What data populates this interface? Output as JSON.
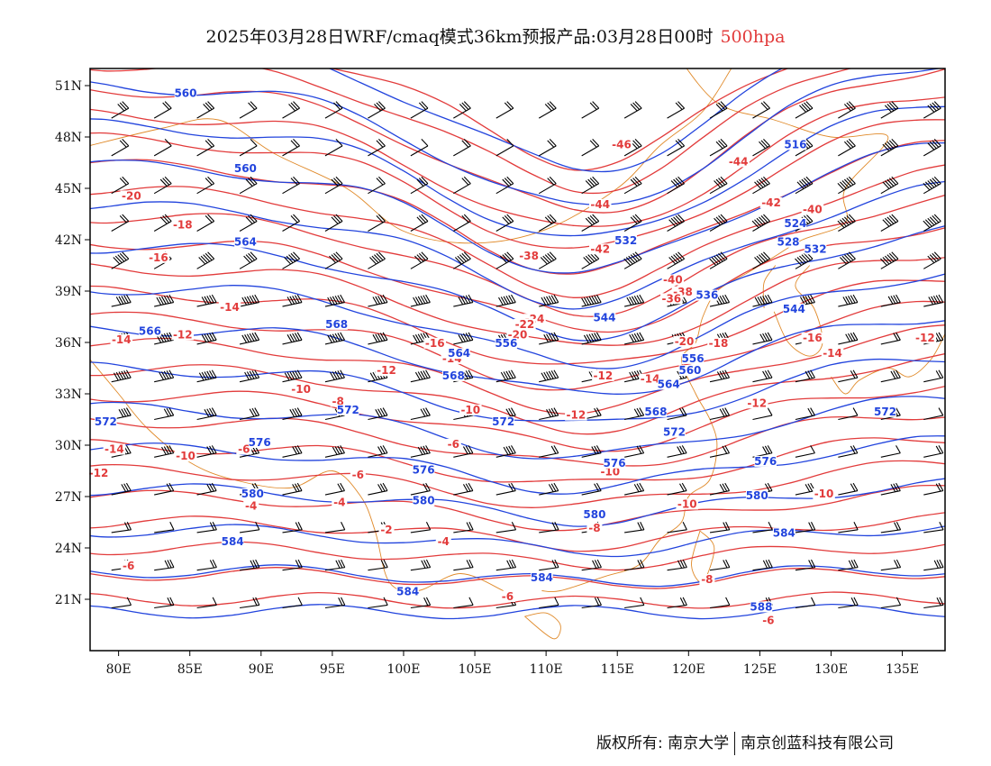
{
  "header": {
    "title": "2025年03月28日WRF/cmaq模式36km预报产品:03月28日00时",
    "level": "500hpa"
  },
  "map": {
    "lon_range": [
      78,
      138
    ],
    "lat_range": [
      18,
      52
    ],
    "lat_ticks": [
      "51N",
      "48N",
      "45N",
      "42N",
      "39N",
      "36N",
      "33N",
      "30N",
      "27N",
      "24N",
      "21N"
    ],
    "lon_ticks": [
      "80E",
      "85E",
      "90E",
      "95E",
      "100E",
      "105E",
      "110E",
      "115E",
      "120E",
      "125E",
      "130E",
      "135E"
    ],
    "colors": {
      "temperature": "#e23b3b",
      "height": "#2244dd",
      "wind": "#000000",
      "boundary": "#e08a2a"
    },
    "temp_labels": [
      {
        "t": "-46",
        "lon": 115.3,
        "lat": 47.4
      },
      {
        "t": "-44",
        "lon": 123.5,
        "lat": 46.4
      },
      {
        "t": "-44",
        "lon": 113.8,
        "lat": 43.9
      },
      {
        "t": "-42",
        "lon": 125.8,
        "lat": 44.0
      },
      {
        "t": "-40",
        "lon": 128.7,
        "lat": 43.6
      },
      {
        "t": "-20",
        "lon": 80.9,
        "lat": 44.4
      },
      {
        "t": "-18",
        "lon": 84.5,
        "lat": 42.7
      },
      {
        "t": "-16",
        "lon": 82.8,
        "lat": 40.8
      },
      {
        "t": "-38",
        "lon": 108.8,
        "lat": 40.9
      },
      {
        "t": "-42",
        "lon": 113.8,
        "lat": 41.3
      },
      {
        "t": "-40",
        "lon": 118.9,
        "lat": 39.5
      },
      {
        "t": "-38",
        "lon": 119.6,
        "lat": 38.8
      },
      {
        "t": "-36",
        "lon": 118.8,
        "lat": 38.4
      },
      {
        "t": "-14",
        "lon": 87.8,
        "lat": 37.9
      },
      {
        "t": "-12",
        "lon": 84.5,
        "lat": 36.3
      },
      {
        "t": "-14",
        "lon": 80.2,
        "lat": 36.0
      },
      {
        "t": "-24",
        "lon": 109.2,
        "lat": 37.2
      },
      {
        "t": "-22",
        "lon": 108.5,
        "lat": 36.9
      },
      {
        "t": "-20",
        "lon": 108.0,
        "lat": 36.3
      },
      {
        "t": "-16",
        "lon": 102.2,
        "lat": 35.8
      },
      {
        "t": "-14",
        "lon": 103.4,
        "lat": 34.9
      },
      {
        "t": "-12",
        "lon": 98.8,
        "lat": 34.2
      },
      {
        "t": "-20",
        "lon": 119.7,
        "lat": 35.9
      },
      {
        "t": "-18",
        "lon": 122.1,
        "lat": 35.8
      },
      {
        "t": "-16",
        "lon": 128.7,
        "lat": 36.1
      },
      {
        "t": "-14",
        "lon": 130.1,
        "lat": 35.2
      },
      {
        "t": "-12",
        "lon": 136.6,
        "lat": 36.1
      },
      {
        "t": "-14",
        "lon": 117.3,
        "lat": 33.7
      },
      {
        "t": "-12",
        "lon": 114.0,
        "lat": 33.9
      },
      {
        "t": "-12",
        "lon": 124.8,
        "lat": 32.3
      },
      {
        "t": "-10",
        "lon": 92.8,
        "lat": 33.1
      },
      {
        "t": "-8",
        "lon": 95.4,
        "lat": 32.4
      },
      {
        "t": "-10",
        "lon": 104.7,
        "lat": 31.9
      },
      {
        "t": "-12",
        "lon": 112.1,
        "lat": 31.6
      },
      {
        "t": "-14",
        "lon": 79.7,
        "lat": 29.6
      },
      {
        "t": "-12",
        "lon": 78.6,
        "lat": 28.2
      },
      {
        "t": "-10",
        "lon": 84.7,
        "lat": 29.2
      },
      {
        "t": "-6",
        "lon": 88.8,
        "lat": 29.6
      },
      {
        "t": "-6",
        "lon": 103.5,
        "lat": 29.9
      },
      {
        "t": "-6",
        "lon": 96.8,
        "lat": 28.1
      },
      {
        "t": "-4",
        "lon": 89.3,
        "lat": 26.3
      },
      {
        "t": "-4",
        "lon": 95.5,
        "lat": 26.5
      },
      {
        "t": "-10",
        "lon": 114.5,
        "lat": 28.3
      },
      {
        "t": "-10",
        "lon": 119.9,
        "lat": 26.4
      },
      {
        "t": "-10",
        "lon": 129.5,
        "lat": 27.0
      },
      {
        "t": "-2",
        "lon": 98.8,
        "lat": 24.9
      },
      {
        "t": "-4",
        "lon": 102.8,
        "lat": 24.2
      },
      {
        "t": "-8",
        "lon": 113.4,
        "lat": 25.0
      },
      {
        "t": "-6",
        "lon": 80.7,
        "lat": 22.8
      },
      {
        "t": "-6",
        "lon": 107.3,
        "lat": 21.0
      },
      {
        "t": "-8",
        "lon": 121.3,
        "lat": 22.0
      },
      {
        "t": "-6",
        "lon": 125.6,
        "lat": 19.6
      }
    ],
    "height_labels": [
      {
        "t": "560",
        "lon": 84.7,
        "lat": 50.4
      },
      {
        "t": "516",
        "lon": 127.5,
        "lat": 47.4
      },
      {
        "t": "560",
        "lon": 88.9,
        "lat": 46.0
      },
      {
        "t": "524",
        "lon": 127.5,
        "lat": 42.8
      },
      {
        "t": "564",
        "lon": 88.9,
        "lat": 41.7
      },
      {
        "t": "532",
        "lon": 115.6,
        "lat": 41.8
      },
      {
        "t": "528",
        "lon": 127.0,
        "lat": 41.7
      },
      {
        "t": "532",
        "lon": 128.9,
        "lat": 41.3
      },
      {
        "t": "536",
        "lon": 121.3,
        "lat": 38.6
      },
      {
        "t": "544",
        "lon": 127.4,
        "lat": 37.8
      },
      {
        "t": "568",
        "lon": 95.3,
        "lat": 36.9
      },
      {
        "t": "566",
        "lon": 82.2,
        "lat": 36.5
      },
      {
        "t": "544",
        "lon": 114.1,
        "lat": 37.3
      },
      {
        "t": "556",
        "lon": 120.3,
        "lat": 34.9
      },
      {
        "t": "560",
        "lon": 120.1,
        "lat": 34.2
      },
      {
        "t": "564",
        "lon": 118.6,
        "lat": 33.4
      },
      {
        "t": "556",
        "lon": 107.2,
        "lat": 35.8
      },
      {
        "t": "564",
        "lon": 103.9,
        "lat": 35.2
      },
      {
        "t": "568",
        "lon": 103.5,
        "lat": 33.9
      },
      {
        "t": "568",
        "lon": 117.7,
        "lat": 31.8
      },
      {
        "t": "572",
        "lon": 96.1,
        "lat": 31.9
      },
      {
        "t": "572",
        "lon": 107.0,
        "lat": 31.2
      },
      {
        "t": "572",
        "lon": 119.0,
        "lat": 30.6
      },
      {
        "t": "572",
        "lon": 133.8,
        "lat": 31.8
      },
      {
        "t": "572",
        "lon": 79.1,
        "lat": 31.2
      },
      {
        "t": "576",
        "lon": 89.9,
        "lat": 30.0
      },
      {
        "t": "576",
        "lon": 101.4,
        "lat": 28.4
      },
      {
        "t": "576",
        "lon": 114.8,
        "lat": 28.8
      },
      {
        "t": "576",
        "lon": 125.4,
        "lat": 28.9
      },
      {
        "t": "580",
        "lon": 89.4,
        "lat": 27.0
      },
      {
        "t": "580",
        "lon": 101.4,
        "lat": 26.6
      },
      {
        "t": "580",
        "lon": 113.4,
        "lat": 25.8
      },
      {
        "t": "580",
        "lon": 124.8,
        "lat": 26.9
      },
      {
        "t": "584",
        "lon": 88.0,
        "lat": 24.2
      },
      {
        "t": "584",
        "lon": 126.7,
        "lat": 24.7
      },
      {
        "t": "584",
        "lon": 109.7,
        "lat": 22.1
      },
      {
        "t": "584",
        "lon": 100.3,
        "lat": 21.3
      },
      {
        "t": "588",
        "lon": 125.1,
        "lat": 20.4
      }
    ]
  },
  "footer": {
    "copyright": "版权所有: 南京大学",
    "company": "南京创蓝科技有限公司"
  }
}
